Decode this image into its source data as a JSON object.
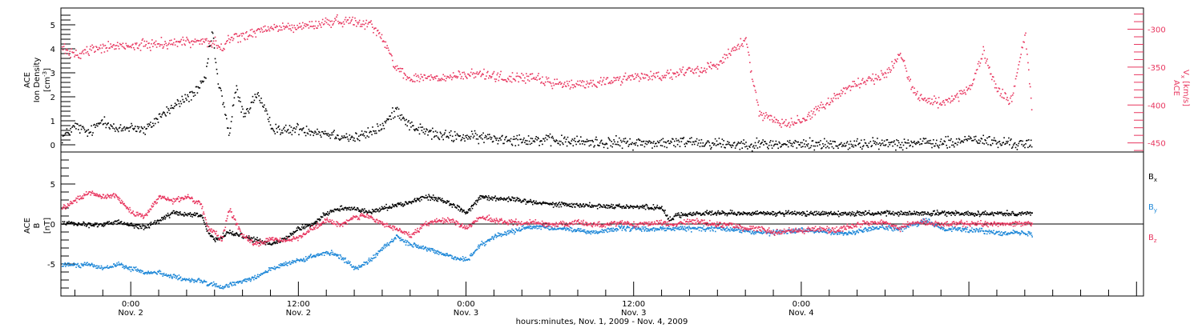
{
  "colors": {
    "density": "#000000",
    "speed": "#e8365f",
    "bx": "#000000",
    "by": "#1f88d8",
    "bz": "#e8365f",
    "frame": "#000000"
  },
  "x_axis": {
    "label": "hours:minutes, Nov. 1, 2009 - Nov. 4, 2009",
    "range_hours": [
      -5,
      72.5
    ],
    "data_end_hours": 64.5,
    "ticks": [
      {
        "hours": 0,
        "time": "0:00",
        "date": "Nov. 2"
      },
      {
        "hours": 12,
        "time": "12:00",
        "date": "Nov. 2"
      },
      {
        "hours": 24,
        "time": "0:00",
        "date": "Nov. 3"
      },
      {
        "hours": 36,
        "time": "12:00",
        "date": "Nov. 3"
      },
      {
        "hours": 48,
        "time": "0:00",
        "date": "Nov. 4"
      }
    ]
  },
  "panel1": {
    "ylabel_line1": "ACE",
    "ylabel_line2": "Ion Density",
    "ylabel_unit": "[cm",
    "ylabel_unit_exp": "-3",
    "ylabel_unit_end": "]",
    "ylim": [
      -0.3,
      5.7
    ],
    "ticks": [
      {
        "v": 0,
        "label": "0"
      },
      {
        "v": 1,
        "label": "1"
      },
      {
        "v": 2,
        "label": "2"
      },
      {
        "v": 3,
        "label": "3"
      },
      {
        "v": 4,
        "label": "4"
      },
      {
        "v": 5,
        "label": "5"
      }
    ],
    "right_axis": {
      "ylabel_line1": "ACE",
      "ylabel_main": "V",
      "ylabel_sub": "x",
      "ylabel_unit": " [km/s]",
      "ylim": [
        -462,
        -272
      ],
      "ticks": [
        {
          "v": -300,
          "label": "-300"
        },
        {
          "v": -350,
          "label": "-350"
        },
        {
          "v": -400,
          "label": "-400"
        },
        {
          "v": -450,
          "label": "-450"
        }
      ]
    }
  },
  "panel2": {
    "ylabel_line1": "ACE",
    "ylabel_main": "B",
    "ylabel_unit": "[nT]",
    "ylim": [
      -9,
      9
    ],
    "ticks": [
      {
        "v": 5,
        "label": "5"
      },
      {
        "v": 0,
        "label": "0"
      },
      {
        "v": -5,
        "label": "-5"
      }
    ],
    "legend": [
      {
        "main": "B",
        "sub": "x"
      },
      {
        "main": "B",
        "sub": "y"
      },
      {
        "main": "B",
        "sub": "z"
      }
    ]
  },
  "chart_data": {
    "type": "scatter",
    "panels": [
      {
        "name": "ion-density-and-vx",
        "series": [
          {
            "axis": "left",
            "x_hours": [
              -5,
              -4,
              -3,
              -2,
              -1,
              0,
              1,
              2,
              3,
              4,
              4.8,
              5.3,
              5.8,
              6.2,
              6.6,
              7,
              7.5,
              8,
              8.5,
              9,
              10,
              11,
              12,
              13,
              14,
              15,
              16,
              17,
              18,
              19,
              20,
              22,
              24,
              26,
              28,
              30,
              32,
              34,
              36,
              38,
              39,
              40,
              41,
              42,
              43,
              44,
              45,
              46,
              47,
              48,
              49,
              50,
              51,
              52,
              53,
              54,
              55,
              56,
              57,
              58,
              59,
              60,
              61,
              62,
              63,
              64,
              64.5
            ],
            "values": [
              0.3,
              0.8,
              0.5,
              1.1,
              0.6,
              0.8,
              0.6,
              1.2,
              1.6,
              2.0,
              2.3,
              2.8,
              4.8,
              2.6,
              1.8,
              0.4,
              2.4,
              1.3,
              1.6,
              2.2,
              0.8,
              0.6,
              0.7,
              0.6,
              0.5,
              0.4,
              0.3,
              0.5,
              0.8,
              1.5,
              0.8,
              0.4,
              0.35,
              0.3,
              0.25,
              0.2,
              0.15,
              0.12,
              0.1,
              0.1,
              0.1,
              0.2,
              0.1,
              0.1,
              0.05,
              0.05,
              0.05,
              0.05,
              0.05,
              0.05,
              0.05,
              0.05,
              0.05,
              0.05,
              0.05,
              0.1,
              0.1,
              0.1,
              0.1,
              0.1,
              0.1,
              0.3,
              0.2,
              0.1,
              0.1,
              0.05,
              0.05
            ],
            "jitter": 0.35
          },
          {
            "axis": "right",
            "x_hours": [
              -5,
              -4,
              -3,
              -2,
              -1,
              0,
              1,
              2,
              3,
              4,
              5,
              6,
              6.5,
              7,
              8,
              9,
              10,
              11,
              12,
              13,
              14,
              15,
              16,
              17,
              18,
              19,
              20,
              21,
              22,
              23,
              24,
              25,
              26,
              27,
              28,
              29,
              30,
              31,
              32,
              33,
              34,
              35,
              36,
              37,
              38,
              39,
              40,
              41,
              42,
              43,
              44,
              45,
              46,
              47,
              48,
              49,
              50,
              51,
              52,
              53,
              54,
              55,
              56,
              57,
              58,
              59,
              60,
              61,
              62,
              63,
              64,
              64.5
            ],
            "values": [
              -325,
              -333,
              -327,
              -323,
              -322,
              -322,
              -320,
              -318,
              -317,
              -316,
              -314,
              -318,
              -326,
              -312,
              -308,
              -303,
              -298,
              -297,
              -296,
              -294,
              -290,
              -288,
              -289,
              -291,
              -312,
              -350,
              -366,
              -362,
              -365,
              -362,
              -360,
              -358,
              -360,
              -365,
              -362,
              -365,
              -370,
              -372,
              -373,
              -370,
              -368,
              -365,
              -362,
              -360,
              -361,
              -358,
              -355,
              -352,
              -345,
              -327,
              -315,
              -413,
              -418,
              -423,
              -420,
              -405,
              -395,
              -380,
              -370,
              -365,
              -360,
              -330,
              -380,
              -395,
              -395,
              -390,
              -380,
              -330,
              -380,
              -395,
              -305,
              -410
            ],
            "jitter": 10
          }
        ]
      },
      {
        "name": "magnetic-field-gse",
        "series": [
          {
            "name": "Bx",
            "x_hours": [
              -5,
              -4,
              -3,
              -2,
              -1,
              0,
              1,
              2,
              3,
              4,
              5,
              5.5,
              6,
              6.5,
              7,
              8,
              9,
              10,
              11,
              12,
              13,
              14,
              15,
              16,
              17,
              18,
              19,
              20,
              21,
              22,
              23,
              24,
              25,
              26,
              27,
              28,
              29,
              30,
              31,
              32,
              33,
              34,
              35,
              36,
              37,
              38,
              38.5,
              39,
              40,
              41,
              42,
              43,
              44,
              45,
              46,
              47,
              48,
              49,
              50,
              51,
              52,
              53,
              54,
              55,
              56,
              57,
              58,
              59,
              60,
              61,
              62,
              63,
              64,
              64.5
            ],
            "values": [
              0.3,
              0.2,
              0,
              0,
              0.3,
              0,
              -0.3,
              0.5,
              1.5,
              1.2,
              1.2,
              -1,
              -2,
              -1.5,
              -1,
              -1.5,
              -2,
              -2.5,
              -1.8,
              -0.5,
              0,
              1.5,
              2,
              2,
              1.5,
              2,
              2.5,
              2.8,
              3.5,
              3.2,
              2.5,
              1.5,
              3.5,
              3.3,
              3.2,
              3.0,
              2.8,
              2.6,
              2.5,
              2.4,
              2.4,
              2.3,
              2.3,
              2.2,
              2.2,
              2.1,
              0.5,
              1.2,
              1.3,
              1.4,
              1.4,
              1.4,
              1.4,
              1.4,
              1.4,
              1.4,
              1.4,
              1.4,
              1.4,
              1.4,
              1.4,
              1.4,
              1.4,
              1.4,
              1.4,
              1.4,
              1.4,
              1.4,
              1.4,
              1.4,
              1.4,
              1.4,
              1.4,
              1.4
            ],
            "jitter": 0.45
          },
          {
            "name": "By",
            "x_hours": [
              -5,
              -4,
              -3,
              -2,
              -1,
              0,
              1,
              2,
              3,
              4,
              5,
              5.5,
              6,
              6.5,
              7,
              8,
              9,
              10,
              11,
              12,
              13,
              14,
              15,
              16,
              17,
              18,
              19,
              20,
              21,
              22,
              23,
              24,
              25,
              26,
              27,
              28,
              29,
              30,
              31,
              32,
              33,
              34,
              35,
              36,
              37,
              38,
              39,
              40,
              41,
              42,
              43,
              44,
              45,
              46,
              47,
              48,
              49,
              50,
              51,
              52,
              53,
              54,
              55,
              56,
              57,
              58,
              59,
              60,
              61,
              62,
              63,
              64,
              64.5
            ],
            "values": [
              -5,
              -5,
              -5,
              -5.5,
              -5,
              -5.5,
              -6,
              -6,
              -6.5,
              -7,
              -7,
              -7.5,
              -7.5,
              -8,
              -7.5,
              -7,
              -6.5,
              -5.5,
              -5,
              -4.5,
              -4,
              -3.5,
              -4,
              -5.5,
              -4.5,
              -3,
              -1.5,
              -2.5,
              -3,
              -3.5,
              -4,
              -4.5,
              -2.5,
              -1.5,
              -1,
              -0.5,
              -0.3,
              -0.5,
              -0.5,
              -0.7,
              -1,
              -0.7,
              -0.5,
              -0.5,
              -0.6,
              -0.5,
              -0.5,
              -0.5,
              -0.5,
              -0.5,
              -0.6,
              -0.8,
              -1,
              -1,
              -0.8,
              -0.7,
              -0.7,
              -0.9,
              -1.1,
              -0.9,
              -0.5,
              -0.3,
              -0.6,
              0,
              0.5,
              -0.5,
              -0.5,
              -0.7,
              -0.8,
              -1,
              -1,
              -1.1,
              -1.2
            ],
            "jitter": 0.45
          },
          {
            "name": "Bz",
            "x_hours": [
              -5,
              -4,
              -3,
              -2,
              -1,
              0,
              1,
              2,
              3,
              4,
              5,
              5.5,
              6,
              6.5,
              7,
              8,
              9,
              10,
              11,
              12,
              13,
              14,
              15,
              16,
              17,
              18,
              19,
              20,
              21,
              22,
              23,
              24,
              25,
              26,
              27,
              28,
              29,
              30,
              31,
              32,
              33,
              34,
              35,
              36,
              37,
              38,
              39,
              40,
              41,
              42,
              43,
              44,
              45,
              46,
              47,
              48,
              49,
              50,
              51,
              52,
              53,
              54,
              55,
              56,
              57,
              58,
              59,
              60,
              61,
              62,
              63,
              64,
              64.5
            ],
            "values": [
              2,
              3,
              4,
              3.5,
              3.5,
              1.5,
              1,
              3.5,
              3,
              3.5,
              2.5,
              -0.5,
              -1,
              -2,
              2,
              -1.5,
              -2.5,
              -1.8,
              -2,
              -1.5,
              -0.5,
              0.5,
              0,
              1,
              1,
              0,
              -0.5,
              -1.5,
              0,
              0.5,
              0.5,
              -0.5,
              1,
              0.5,
              0.3,
              0.2,
              0.3,
              0,
              0,
              0.3,
              0,
              0,
              0.3,
              0,
              0.2,
              0.2,
              0,
              0.5,
              0.2,
              0,
              0,
              -0.5,
              -0.5,
              -1,
              -0.8,
              -0.8,
              -0.5,
              -0.7,
              -0.5,
              0,
              0.3,
              0.2,
              -0.5,
              0.3,
              0.2,
              0,
              0.1,
              0.1,
              0.1,
              0.1,
              0.1,
              0.1,
              0.1
            ],
            "jitter": 0.5
          }
        ]
      }
    ]
  }
}
